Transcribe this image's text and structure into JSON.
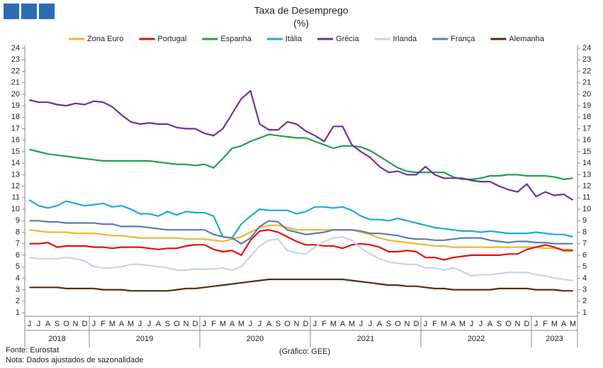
{
  "chart_data": {
    "type": "line",
    "title": "Taxa de Desemprego",
    "subtitle": "(%)",
    "source": "Fonte: Eurostat",
    "note": "Nota: Dados ajustados de sazonalidade",
    "credit": "(Gráfico: GEE)",
    "categories": [
      "J",
      "J",
      "A",
      "S",
      "O",
      "N",
      "D",
      "J",
      "F",
      "M",
      "A",
      "M",
      "J",
      "J",
      "A",
      "S",
      "O",
      "N",
      "D",
      "J",
      "F",
      "M",
      "A",
      "M",
      "J",
      "J",
      "A",
      "S",
      "O",
      "N",
      "D",
      "J",
      "F",
      "M",
      "A",
      "M",
      "J",
      "J",
      "A",
      "S",
      "O",
      "N",
      "D",
      "J",
      "F",
      "M",
      "A",
      "M",
      "J",
      "J",
      "A",
      "S",
      "O",
      "N",
      "D",
      "J",
      "F",
      "M",
      "A",
      "M"
    ],
    "years": [
      "2018",
      "2019",
      "2020",
      "2021",
      "2022",
      "2023"
    ],
    "ylim": [
      1,
      24
    ],
    "yticks": [
      1,
      2,
      3,
      4,
      5,
      6,
      7,
      8,
      9,
      10,
      11,
      12,
      13,
      14,
      15,
      16,
      17,
      18,
      19,
      20,
      21,
      22,
      23,
      24
    ],
    "grid": false,
    "legend": "top",
    "series": [
      {
        "name": "Zona Euro",
        "color": "#f2b531",
        "values": [
          8.2,
          8.1,
          8.0,
          8.0,
          8.0,
          7.9,
          7.9,
          7.9,
          7.8,
          7.7,
          7.7,
          7.6,
          7.5,
          7.5,
          7.5,
          7.5,
          7.5,
          7.4,
          7.4,
          7.4,
          7.3,
          7.2,
          7.4,
          7.6,
          8.0,
          8.4,
          8.6,
          8.6,
          8.4,
          8.2,
          8.2,
          8.2,
          8.2,
          8.2,
          8.2,
          8.2,
          8.0,
          7.8,
          7.5,
          7.3,
          7.2,
          7.1,
          7.0,
          6.9,
          6.8,
          6.8,
          6.7,
          6.7,
          6.7,
          6.7,
          6.7,
          6.7,
          6.7,
          6.7,
          6.7,
          6.7,
          6.6,
          6.6,
          6.5,
          6.5
        ]
      },
      {
        "name": "Portugal",
        "color": "#e3120b",
        "values": [
          7.0,
          7.0,
          7.1,
          6.7,
          6.8,
          6.8,
          6.8,
          6.7,
          6.7,
          6.6,
          6.7,
          6.7,
          6.7,
          6.6,
          6.5,
          6.6,
          6.6,
          6.8,
          6.9,
          6.9,
          6.5,
          6.3,
          6.4,
          6.0,
          7.3,
          8.1,
          8.2,
          8.0,
          7.6,
          7.2,
          6.9,
          6.9,
          6.8,
          6.8,
          6.6,
          6.9,
          7.0,
          6.9,
          6.7,
          6.3,
          6.3,
          6.4,
          6.3,
          5.8,
          5.8,
          5.6,
          5.8,
          5.9,
          6.0,
          6.0,
          6.0,
          6.0,
          6.1,
          6.1,
          6.5,
          6.7,
          6.9,
          6.7,
          6.4,
          6.4
        ]
      },
      {
        "name": "Espanha",
        "color": "#1fa34a",
        "values": [
          15.2,
          15.0,
          14.8,
          14.7,
          14.6,
          14.5,
          14.4,
          14.3,
          14.2,
          14.2,
          14.2,
          14.2,
          14.2,
          14.2,
          14.1,
          14.0,
          13.9,
          13.9,
          13.8,
          13.9,
          13.6,
          14.4,
          15.3,
          15.5,
          15.9,
          16.2,
          16.5,
          16.4,
          16.3,
          16.2,
          16.2,
          15.9,
          15.6,
          15.3,
          15.5,
          15.5,
          15.4,
          15.1,
          14.6,
          14.1,
          13.6,
          13.3,
          13.2,
          13.2,
          13.2,
          13.2,
          12.8,
          12.6,
          12.6,
          12.7,
          12.9,
          12.9,
          13.0,
          13.0,
          12.9,
          12.9,
          12.9,
          12.8,
          12.6,
          12.7
        ]
      },
      {
        "name": "Itália",
        "color": "#1fa9e1",
        "values": [
          10.8,
          10.3,
          10.1,
          10.3,
          10.7,
          10.5,
          10.3,
          10.4,
          10.5,
          10.2,
          10.3,
          10.0,
          9.6,
          9.6,
          9.4,
          9.8,
          9.5,
          9.8,
          9.7,
          9.7,
          9.4,
          7.6,
          7.5,
          8.7,
          9.4,
          10.0,
          9.9,
          9.9,
          9.9,
          9.6,
          9.8,
          10.2,
          10.2,
          10.1,
          10.2,
          9.9,
          9.4,
          9.1,
          9.1,
          9.0,
          9.2,
          9.0,
          8.8,
          8.6,
          8.4,
          8.3,
          8.2,
          8.1,
          8.1,
          8.0,
          8.1,
          8.0,
          7.9,
          7.9,
          7.9,
          8.0,
          7.9,
          7.8,
          7.8,
          7.6
        ]
      },
      {
        "name": "Grécia",
        "color": "#7030a0",
        "values": [
          19.5,
          19.3,
          19.3,
          19.1,
          19.0,
          19.2,
          19.1,
          19.4,
          19.3,
          18.9,
          18.2,
          17.6,
          17.4,
          17.5,
          17.4,
          17.4,
          17.1,
          17.0,
          17.0,
          16.6,
          16.4,
          17.0,
          18.3,
          19.6,
          20.3,
          17.4,
          16.9,
          16.9,
          17.6,
          17.4,
          16.8,
          16.4,
          15.9,
          17.2,
          17.2,
          15.6,
          15.0,
          14.5,
          13.7,
          13.2,
          13.3,
          13.0,
          13.0,
          13.7,
          13.0,
          12.7,
          12.7,
          12.7,
          12.5,
          12.4,
          12.4,
          12.0,
          11.7,
          11.5,
          12.2,
          11.1,
          11.5,
          11.2,
          11.3,
          10.8
        ]
      },
      {
        "name": "Irlanda",
        "color": "#c5d5e6",
        "values": [
          5.8,
          5.7,
          5.7,
          5.7,
          5.8,
          5.7,
          5.5,
          5.0,
          4.9,
          4.9,
          5.0,
          5.2,
          5.2,
          5.1,
          5.0,
          4.9,
          4.7,
          4.7,
          4.8,
          4.8,
          4.8,
          4.9,
          4.7,
          5.0,
          5.9,
          6.8,
          7.3,
          7.4,
          6.4,
          6.2,
          6.1,
          6.7,
          7.2,
          7.5,
          7.6,
          7.3,
          6.6,
          6.1,
          5.7,
          5.4,
          5.3,
          5.2,
          5.2,
          4.9,
          4.9,
          4.7,
          4.9,
          4.6,
          4.2,
          4.3,
          4.3,
          4.4,
          4.5,
          4.5,
          4.5,
          4.3,
          4.2,
          4.0,
          3.9,
          3.8
        ]
      },
      {
        "name": "França",
        "color": "#5b7faf",
        "values": [
          9.0,
          9.0,
          8.9,
          8.9,
          8.8,
          8.8,
          8.8,
          8.8,
          8.7,
          8.7,
          8.5,
          8.5,
          8.5,
          8.4,
          8.3,
          8.2,
          8.2,
          8.2,
          8.2,
          8.2,
          7.8,
          7.6,
          7.5,
          7.0,
          7.5,
          8.5,
          9.0,
          8.9,
          8.2,
          8.0,
          7.8,
          7.9,
          8.0,
          8.2,
          8.2,
          8.2,
          8.1,
          7.9,
          7.9,
          7.8,
          7.7,
          7.5,
          7.4,
          7.4,
          7.3,
          7.3,
          7.4,
          7.5,
          7.5,
          7.5,
          7.3,
          7.2,
          7.1,
          7.2,
          7.2,
          7.1,
          7.1,
          7.0,
          7.0,
          7.0
        ]
      },
      {
        "name": "Alemanha",
        "color": "#5a2d0c",
        "values": [
          3.2,
          3.2,
          3.2,
          3.2,
          3.1,
          3.1,
          3.1,
          3.1,
          3.0,
          3.0,
          3.0,
          2.9,
          2.9,
          2.9,
          2.9,
          2.9,
          3.0,
          3.1,
          3.1,
          3.2,
          3.3,
          3.4,
          3.5,
          3.6,
          3.7,
          3.8,
          3.9,
          3.9,
          3.9,
          3.9,
          3.9,
          3.9,
          3.9,
          3.9,
          3.9,
          3.8,
          3.7,
          3.6,
          3.5,
          3.4,
          3.4,
          3.3,
          3.3,
          3.2,
          3.1,
          3.1,
          3.0,
          3.0,
          3.0,
          3.0,
          3.0,
          3.1,
          3.1,
          3.1,
          3.1,
          3.0,
          3.0,
          3.0,
          2.9,
          2.9
        ]
      }
    ]
  }
}
